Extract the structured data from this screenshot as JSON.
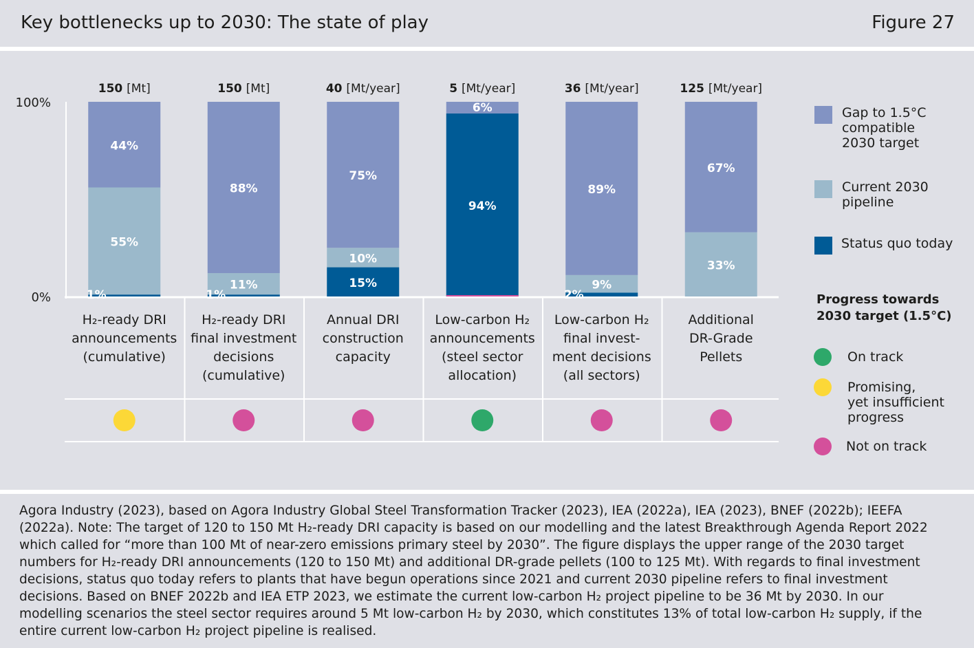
{
  "header": {
    "title": "Key bottlenecks up to 2030: The state of play",
    "figure": "Figure 27"
  },
  "colors": {
    "gap": "#8293c3",
    "pipeline": "#9bb9cb",
    "status_quo": "#005b96",
    "on_track": "#2ea86a",
    "promising": "#fcd837",
    "not_on_track": "#d4509b"
  },
  "chart_data": {
    "type": "bar",
    "stacked": true,
    "ylim": [
      0,
      100
    ],
    "y_ticks": [
      "0%",
      "100%"
    ],
    "categories": [
      [
        "H₂-ready DRI",
        "announcements",
        "(cumulative)"
      ],
      [
        "H₂-ready DRI",
        "final investment",
        "decisions",
        "(cumulative)"
      ],
      [
        "Annual DRI",
        "construction",
        "capacity"
      ],
      [
        "Low-carbon H₂",
        "announcements",
        "(steel sector",
        "allocation)"
      ],
      [
        "Low-carbon H₂",
        "final invest-",
        "ment decisions",
        "(all sectors)"
      ],
      [
        "Additional",
        "DR-Grade",
        "Pellets"
      ]
    ],
    "totals": [
      {
        "value": "150",
        "unit": "[Mt]"
      },
      {
        "value": "150",
        "unit": "[Mt]"
      },
      {
        "value": "40",
        "unit": "[Mt/year]"
      },
      {
        "value": "5",
        "unit": "[Mt/year]"
      },
      {
        "value": "36",
        "unit": "[Mt/year]"
      },
      {
        "value": "125",
        "unit": "[Mt/year]"
      }
    ],
    "series": [
      {
        "name": "Status quo today",
        "key": "status_quo",
        "values": [
          1,
          1,
          15,
          94,
          2,
          0
        ],
        "labels": [
          "1%",
          "1%",
          "15%",
          "94%",
          "2%",
          ""
        ]
      },
      {
        "name": "Current 2030 pipeline",
        "key": "pipeline",
        "values": [
          55,
          11,
          10,
          0,
          9,
          33
        ],
        "labels": [
          "55%",
          "11%",
          "10%",
          "",
          "9%",
          "33%"
        ]
      },
      {
        "name": "Gap to 1.5°C compatible 2030 target",
        "key": "gap",
        "values": [
          44,
          88,
          75,
          6,
          89,
          67
        ],
        "labels": [
          "44%",
          "88%",
          "75%",
          "6%",
          "89%",
          "67%"
        ]
      }
    ],
    "progress": [
      "promising",
      "not_on_track",
      "not_on_track",
      "on_track",
      "not_on_track",
      "not_on_track"
    ]
  },
  "legend": {
    "series": [
      {
        "key": "gap",
        "lines": [
          "Gap to 1.5°C",
          "compatible",
          "2030 target"
        ]
      },
      {
        "key": "pipeline",
        "lines": [
          "Current 2030",
          "pipeline"
        ]
      },
      {
        "key": "status_quo",
        "lines": [
          "Status quo today"
        ]
      }
    ],
    "progress_title": [
      "Progress towards",
      "2030 target (1.5°C)"
    ],
    "progress": [
      {
        "key": "on_track",
        "lines": [
          "On track"
        ]
      },
      {
        "key": "promising",
        "lines": [
          "Promising,",
          "yet insufficient",
          "progress"
        ]
      },
      {
        "key": "not_on_track",
        "lines": [
          "Not on track"
        ]
      }
    ]
  },
  "footer": {
    "lines": [
      "Agora Industry (2023), based on Agora Industry Global Steel Transformation Tracker (2023), IEA (2022a), IEA (2023), BNEF (2022b); IEEFA",
      "(2022a). Note: The target of 120 to 150 Mt H₂-ready DRI capacity is based on our modelling and the latest Breakthrough Agenda Report 2022",
      "which called for “more than 100 Mt of near-zero emissions primary steel by 2030”. The figure displays the upper range of the 2030 target",
      "numbers for H₂-ready DRI announcements (120 to 150 Mt) and additional DR-grade pellets (100 to 125 Mt). With regards to final investment",
      "decisions, status quo today refers to plants that have begun operations since 2021 and current 2030 pipeline refers to final investment",
      "decisions. Based on BNEF 2022b and IEA ETP 2023, we estimate the current low-carbon H₂ project pipeline to be 36 Mt by 2030. In our",
      "modelling scenarios the steel sector requires around 5 Mt low-carbon H₂ by 2030, which constitutes 13% of total low-carbon H₂ supply, if the",
      "entire current low-carbon H₂ project pipeline is realised."
    ]
  }
}
